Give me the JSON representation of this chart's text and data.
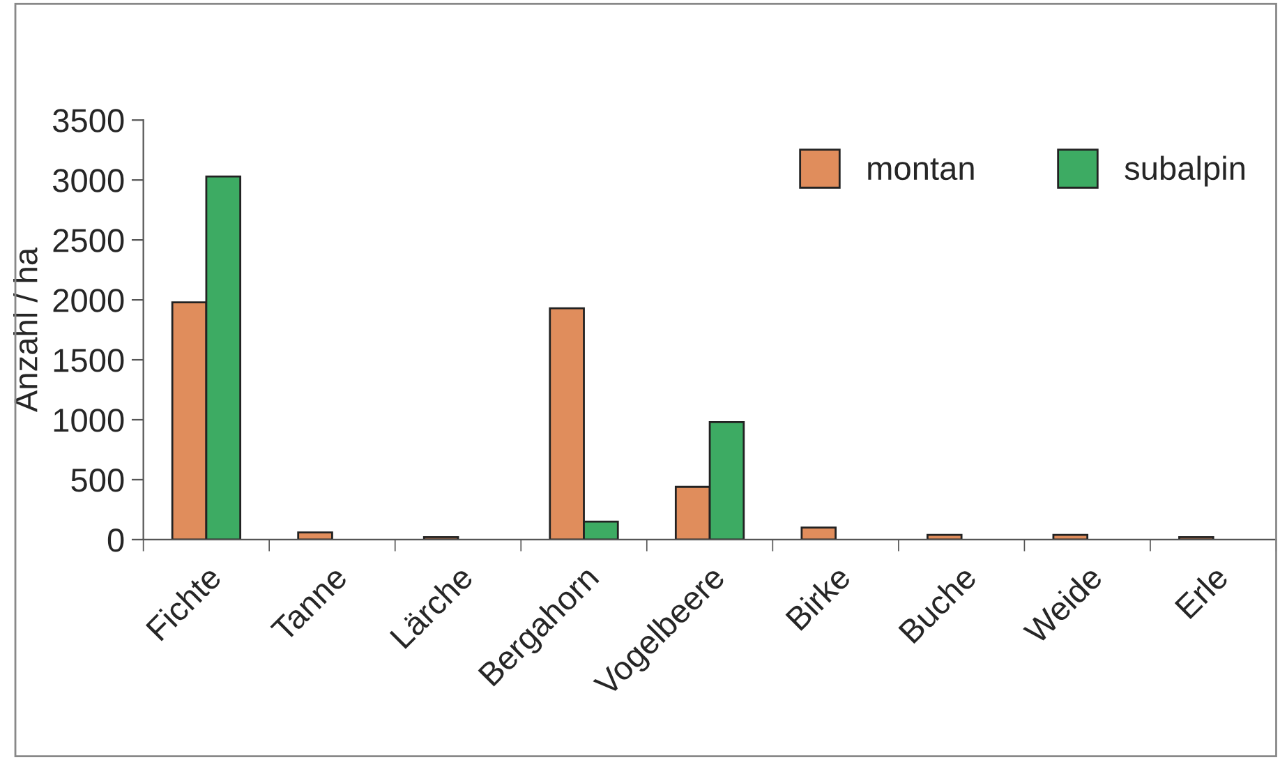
{
  "chart_data": {
    "type": "bar",
    "ylabel": "Anzahl / ha",
    "categories": [
      "Fichte",
      "Tanne",
      "Lärche",
      "Bergahorn",
      "Vogelbeere",
      "Birke",
      "Buche",
      "Weide",
      "Erle"
    ],
    "series": [
      {
        "name": "montan",
        "color": "#e08d5c",
        "values": [
          1980,
          60,
          20,
          1930,
          440,
          100,
          40,
          40,
          20
        ]
      },
      {
        "name": "subalpin",
        "color": "#3dab63",
        "values": [
          3030,
          null,
          null,
          150,
          980,
          null,
          null,
          null,
          null
        ]
      }
    ],
    "ylim": [
      0,
      3500
    ],
    "yticks": [
      0,
      500,
      1000,
      1500,
      2000,
      2500,
      3000,
      3500
    ],
    "grid": false,
    "legend": "top right"
  }
}
